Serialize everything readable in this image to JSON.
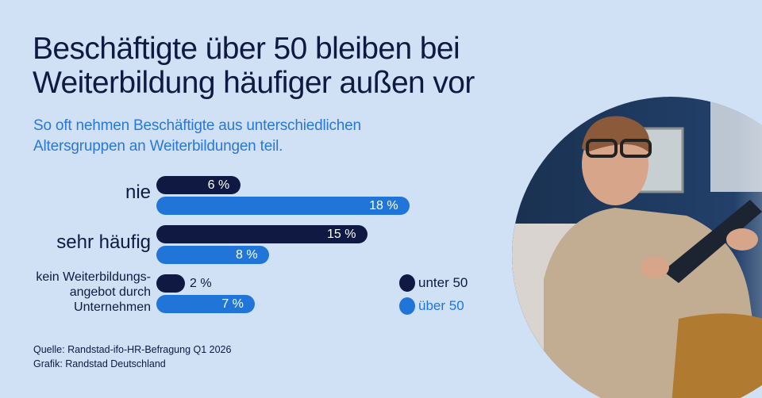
{
  "title_lines": [
    "Beschäftigte über 50 bleiben bei",
    "Weiterbildung häufiger außen vor"
  ],
  "subtitle_lines": [
    "So oft nehmen Beschäftigte aus unterschiedlichen",
    "Altersgruppen an Weiterbildungen teil."
  ],
  "chart_data": {
    "type": "bar",
    "orientation": "horizontal",
    "categories": [
      "nie",
      "sehr häufig",
      "kein Weiterbildungs-angebot durch Unternehmen"
    ],
    "category_lines": [
      [
        "nie"
      ],
      [
        "sehr häufig"
      ],
      [
        "kein Weiterbildungs-",
        "angebot durch",
        "Unternehmen"
      ]
    ],
    "series": [
      {
        "name": "unter 50",
        "color": "#0f1941",
        "values": [
          6,
          15,
          2
        ],
        "labels": [
          "6 %",
          "15 %",
          "2 %"
        ]
      },
      {
        "name": "über 50",
        "color": "#2175d9",
        "values": [
          18,
          8,
          7
        ],
        "labels": [
          "18 %",
          "8 %",
          "7 %"
        ]
      }
    ],
    "unit": "%",
    "grid": false,
    "legend": "bottom-right"
  },
  "source_lines": [
    "Quelle: Randstad-ifo-HR-Befragung Q1 2026",
    "Grafik: Randstad Deutschland"
  ],
  "colors": {
    "background": "#d0e1f6",
    "navy": "#0f1941",
    "blue": "#2175d9"
  }
}
